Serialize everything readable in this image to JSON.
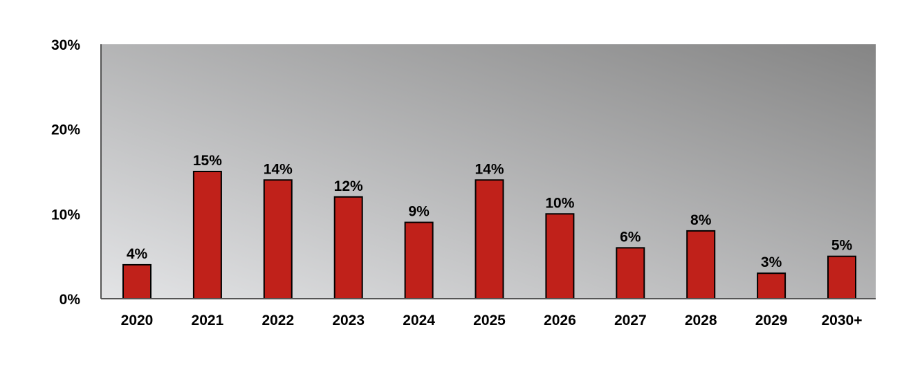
{
  "chart_data": {
    "type": "bar",
    "categories": [
      "2020",
      "2021",
      "2022",
      "2023",
      "2024",
      "2025",
      "2026",
      "2027",
      "2028",
      "2029",
      "2030+"
    ],
    "values": [
      4,
      15,
      14,
      12,
      9,
      14,
      10,
      6,
      8,
      3,
      5
    ],
    "data_labels": [
      "4%",
      "15%",
      "14%",
      "12%",
      "9%",
      "14%",
      "10%",
      "6%",
      "8%",
      "3%",
      "5%"
    ],
    "y_ticks": [
      0,
      10,
      20,
      30
    ],
    "y_tick_labels": [
      "0%",
      "10%",
      "20%",
      "30%"
    ],
    "ylim": [
      0,
      30
    ],
    "title": "",
    "xlabel": "",
    "ylabel": "",
    "grid": false,
    "legend": "none",
    "colors": {
      "bar": "#c0211a",
      "bar_outline": "#000000",
      "plot_bg_light": "#e3e4e6",
      "plot_bg_dark": "#858585",
      "axis": "#555555"
    }
  }
}
